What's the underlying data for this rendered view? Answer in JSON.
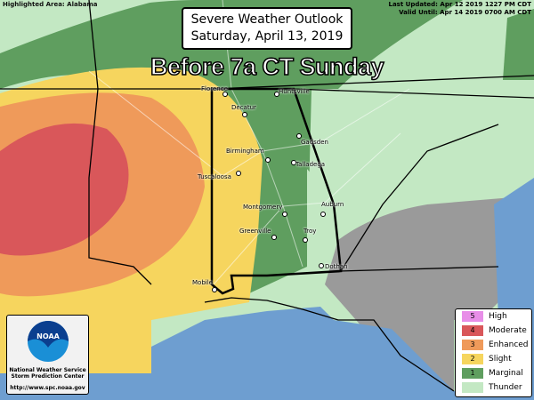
{
  "header": {
    "highlighted": "Highlighted Area: Alabama",
    "last_updated": "Last Updated: Apr 12 2019 1227 PM CDT",
    "valid_until": "Valid Until: Apr 14 2019 0700 AM CDT",
    "title_line1": "Severe Weather Outlook",
    "title_line2": "Saturday, April 13, 2019",
    "period": "Before 7a CT Sunday"
  },
  "cities": [
    {
      "name": "Florence"
    },
    {
      "name": "Huntsville"
    },
    {
      "name": "Decatur"
    },
    {
      "name": "Gadsden"
    },
    {
      "name": "Birmingham"
    },
    {
      "name": "Talladega"
    },
    {
      "name": "Tuscaloosa"
    },
    {
      "name": "Montgomery"
    },
    {
      "name": "Auburn"
    },
    {
      "name": "Greenville"
    },
    {
      "name": "Troy"
    },
    {
      "name": "Dothan"
    },
    {
      "name": "Mobile"
    }
  ],
  "logo": {
    "text": "NOAA",
    "line1": "National Weather Service",
    "line2": "Storm Prediction Center",
    "url": "http://www.spc.noaa.gov"
  },
  "legend": [
    {
      "num": "5",
      "label": "High",
      "color": "#e88ee8"
    },
    {
      "num": "4",
      "label": "Moderate",
      "color": "#d9575a"
    },
    {
      "num": "3",
      "label": "Enhanced",
      "color": "#ef9a5a"
    },
    {
      "num": "2",
      "label": "Slight",
      "color": "#f6d55e"
    },
    {
      "num": "1",
      "label": "Marginal",
      "color": "#5f9e5f"
    },
    {
      "num": "",
      "label": "Thunder",
      "color": "#c3e8c3"
    }
  ],
  "colors": {
    "water": "#6e9ed0",
    "no_risk": "#9a9a9a"
  }
}
